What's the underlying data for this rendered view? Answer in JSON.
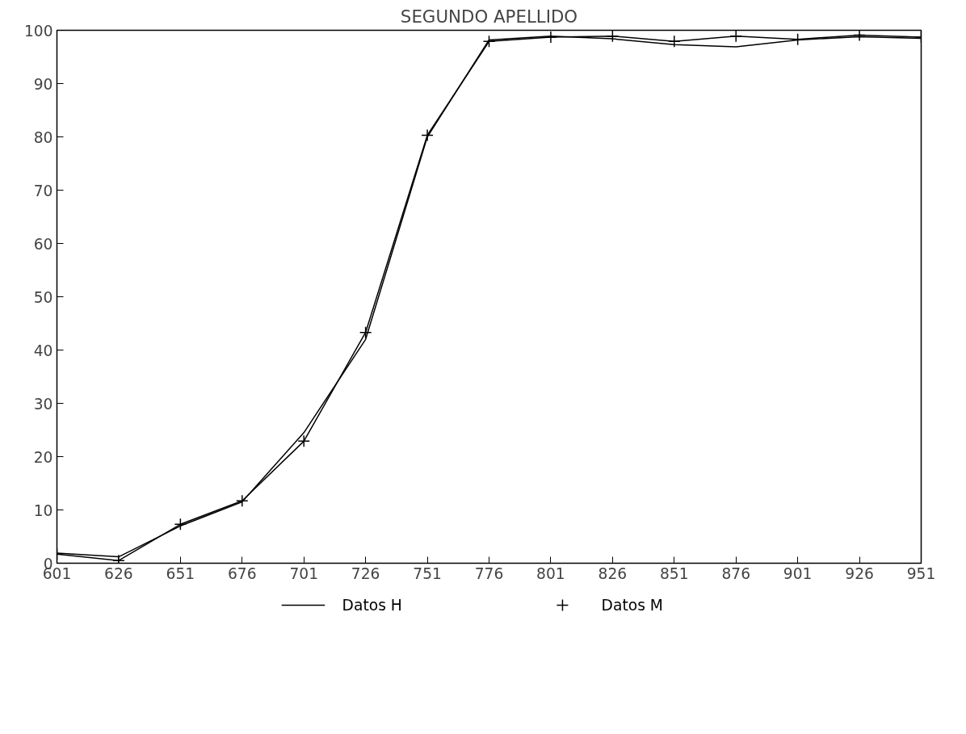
{
  "chart_data": {
    "type": "line",
    "title": "SEGUNDO APELLIDO",
    "x": [
      601,
      626,
      651,
      676,
      701,
      726,
      751,
      776,
      801,
      826,
      851,
      876,
      901,
      926,
      951
    ],
    "series": [
      {
        "name": "Datos H",
        "color": "#000000",
        "marker": "none",
        "values": [
          1.9,
          1.2,
          7.0,
          11.5,
          24.5,
          42.0,
          80.0,
          98.2,
          98.9,
          98.4,
          97.3,
          96.9,
          98.2,
          98.8,
          98.5
        ]
      },
      {
        "name": "Datos M",
        "color": "#000000",
        "marker": "cross",
        "values": [
          1.7,
          0.5,
          7.3,
          11.7,
          22.9,
          43.3,
          80.3,
          97.9,
          98.7,
          98.9,
          97.9,
          98.9,
          98.3,
          99.1,
          98.7
        ]
      }
    ],
    "xlim": [
      601,
      951
    ],
    "xticks": [
      601,
      626,
      651,
      676,
      701,
      726,
      751,
      776,
      801,
      826,
      851,
      876,
      901,
      926,
      951
    ],
    "ylim": [
      0,
      100
    ],
    "yticks": [
      0,
      10,
      20,
      30,
      40,
      50,
      60,
      70,
      80,
      90,
      100
    ],
    "grid": false,
    "legend": "bottom",
    "line_style": "solid"
  }
}
